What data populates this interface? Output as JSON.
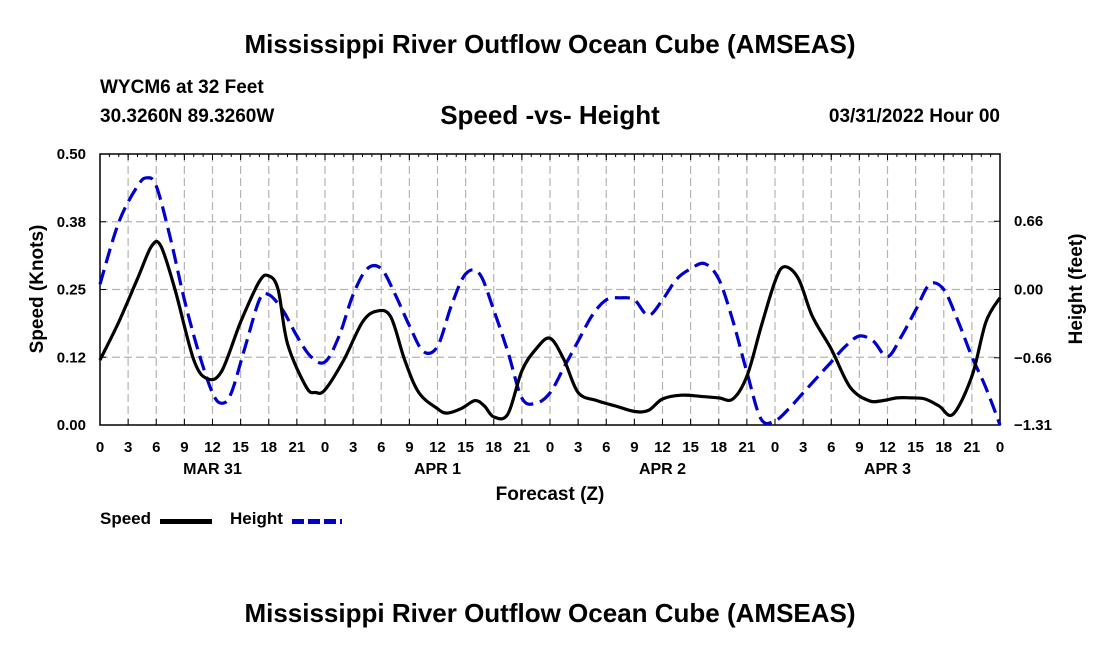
{
  "header": {
    "title": "Mississippi River Outflow Ocean Cube (AMSEAS)",
    "station": "WYCM6 at 32 Feet",
    "coords": "30.3260N  89.3260W",
    "subtitle": "Speed -vs- Height",
    "datetime": "03/31/2022 Hour 00"
  },
  "footer": {
    "title": "Mississippi River Outflow Ocean Cube (AMSEAS)"
  },
  "legend": {
    "speed": "Speed",
    "height": "Height"
  },
  "colors": {
    "speed": "#000000",
    "height": "#0000cc",
    "grid": "#b4b4b4"
  },
  "chart_data": {
    "type": "line",
    "title": "Speed -vs- Height",
    "xlabel": "Forecast (Z)",
    "ylabel": "Speed (Knots)",
    "y2label": "Height (feet)",
    "xlim": [
      0,
      96
    ],
    "ylim": [
      0,
      0.5
    ],
    "y2lim": [
      -1.31,
      1.31
    ],
    "x_ticks": [
      0,
      3,
      6,
      9,
      12,
      15,
      18,
      21,
      24,
      27,
      30,
      33,
      36,
      39,
      42,
      45,
      48,
      51,
      54,
      57,
      60,
      63,
      66,
      69,
      72,
      75,
      78,
      81,
      84,
      87,
      90,
      93,
      96
    ],
    "x_tick_labels": [
      "0",
      "3",
      "6",
      "9",
      "12",
      "15",
      "18",
      "21",
      "0",
      "3",
      "6",
      "9",
      "12",
      "15",
      "18",
      "21",
      "0",
      "3",
      "6",
      "9",
      "12",
      "15",
      "18",
      "21",
      "0",
      "3",
      "6",
      "9",
      "12",
      "15",
      "18",
      "21",
      "0"
    ],
    "day_labels": [
      {
        "x": 12,
        "label": "MAR 31"
      },
      {
        "x": 36,
        "label": "APR 1"
      },
      {
        "x": 60,
        "label": "APR 2"
      },
      {
        "x": 84,
        "label": "APR 3"
      }
    ],
    "y_ticks": [
      0.0,
      0.125,
      0.25,
      0.375,
      0.5
    ],
    "y_tick_labels": [
      "0.00",
      "0.12",
      "0.25",
      "0.38",
      "0.50"
    ],
    "y2_ticks": [
      -1.31,
      -0.66,
      0.0,
      0.66
    ],
    "y2_tick_labels": [
      "−1.31",
      "−0.66",
      "0.00",
      "0.66"
    ],
    "grid": true,
    "series": [
      {
        "name": "Speed",
        "axis": "left",
        "x": [
          0,
          2,
          4,
          5.5,
          6.5,
          8,
          10,
          11.5,
          13,
          15,
          17,
          18,
          19,
          20,
          22,
          23,
          24,
          26,
          28,
          29.5,
          31,
          32.5,
          34,
          36,
          37,
          38.5,
          40,
          41,
          42,
          43.5,
          45,
          46.5,
          48,
          49.5,
          51,
          53,
          55,
          57,
          58.5,
          60,
          62,
          64,
          66,
          67.5,
          69,
          70.5,
          72,
          73,
          74.5,
          76,
          78,
          80,
          82,
          83.5,
          85,
          86.5,
          88,
          89.5,
          91,
          93,
          94.5,
          96
        ],
        "y": [
          0.12,
          0.19,
          0.27,
          0.33,
          0.33,
          0.25,
          0.12,
          0.085,
          0.1,
          0.19,
          0.265,
          0.275,
          0.25,
          0.15,
          0.07,
          0.06,
          0.065,
          0.12,
          0.19,
          0.21,
          0.2,
          0.12,
          0.06,
          0.03,
          0.022,
          0.03,
          0.045,
          0.035,
          0.015,
          0.02,
          0.1,
          0.14,
          0.16,
          0.12,
          0.06,
          0.045,
          0.035,
          0.025,
          0.027,
          0.048,
          0.055,
          0.053,
          0.05,
          0.048,
          0.09,
          0.18,
          0.265,
          0.292,
          0.27,
          0.2,
          0.14,
          0.07,
          0.045,
          0.045,
          0.05,
          0.05,
          0.048,
          0.035,
          0.02,
          0.09,
          0.19,
          0.235
        ]
      },
      {
        "name": "Height",
        "axis": "right",
        "x": [
          0,
          2,
          4,
          5,
          6,
          7.5,
          9,
          10.5,
          12,
          13,
          14,
          15.5,
          17,
          18,
          19.5,
          21,
          22.5,
          24,
          25.5,
          27,
          28.5,
          30,
          31.5,
          33,
          34.5,
          36,
          37.5,
          39,
          40.5,
          42,
          43.5,
          45,
          46.5,
          48,
          49.5,
          51,
          52.5,
          54,
          55.5,
          57,
          58.5,
          60,
          61.5,
          63,
          64.5,
          66,
          67.5,
          69,
          70.5,
          72,
          73.5,
          75,
          76.5,
          78,
          79.5,
          81,
          82.5,
          84,
          85.5,
          87,
          88.5,
          90,
          91.5,
          93,
          94.5,
          96
        ],
        "y": [
          0.05,
          0.65,
          1.0,
          1.08,
          1.0,
          0.5,
          -0.1,
          -0.6,
          -1.0,
          -1.1,
          -1.0,
          -0.55,
          -0.1,
          -0.05,
          -0.2,
          -0.45,
          -0.65,
          -0.7,
          -0.45,
          -0.05,
          0.2,
          0.2,
          -0.05,
          -0.35,
          -0.6,
          -0.55,
          -0.15,
          0.15,
          0.15,
          -0.2,
          -0.6,
          -1.05,
          -1.1,
          -1.0,
          -0.75,
          -0.5,
          -0.25,
          -0.1,
          -0.08,
          -0.1,
          -0.25,
          -0.1,
          0.1,
          0.2,
          0.25,
          0.1,
          -0.3,
          -0.8,
          -1.25,
          -1.27,
          -1.15,
          -1.0,
          -0.85,
          -0.7,
          -0.55,
          -0.45,
          -0.5,
          -0.65,
          -0.45,
          -0.2,
          0.05,
          0.0,
          -0.3,
          -0.65,
          -0.95,
          -1.31
        ]
      }
    ]
  }
}
